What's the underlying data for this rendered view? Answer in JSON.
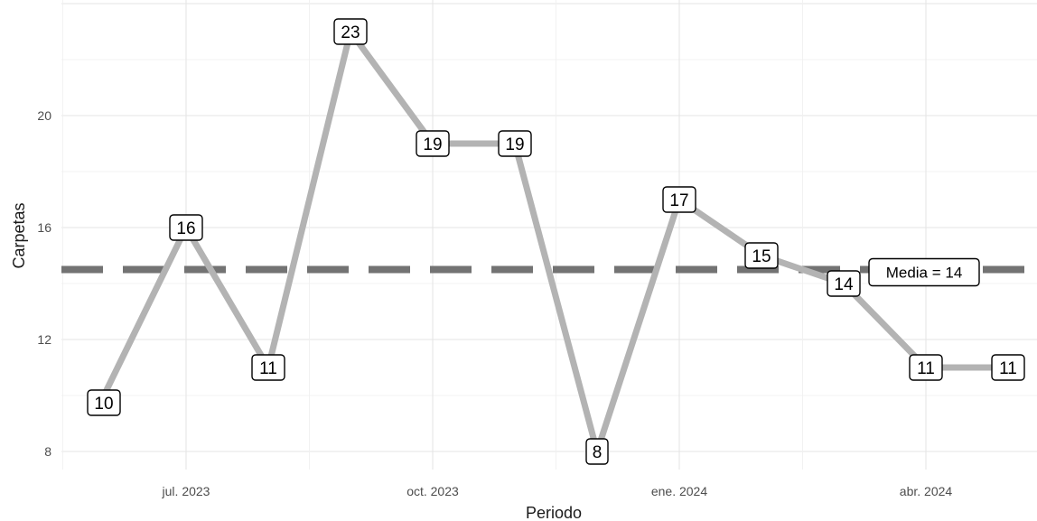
{
  "chart_data": {
    "type": "line",
    "xlabel": "Periodo",
    "ylabel": "Carpetas",
    "x": [
      "2023-06",
      "2023-07",
      "2023-08",
      "2023-09",
      "2023-10",
      "2023-11",
      "2023-12",
      "2024-01",
      "2024-02",
      "2024-03",
      "2024-04",
      "2024-05"
    ],
    "values": [
      10,
      16,
      11,
      23,
      19,
      19,
      8,
      17,
      15,
      14,
      11,
      11
    ],
    "data_labels": [
      "10",
      "16",
      "11",
      "23",
      "19",
      "19",
      "8",
      "17",
      "15",
      "14",
      "11",
      "11"
    ],
    "x_ticks": [
      "jul. 2023",
      "oct. 2023",
      "ene. 2024",
      "abr. 2024"
    ],
    "y_ticks": [
      "8",
      "12",
      "16",
      "20"
    ],
    "ylim": [
      7.5,
      24
    ],
    "mean_line": {
      "value": 14.5,
      "label": "Media = 14"
    },
    "grid": true,
    "legend": "none",
    "colors": {
      "line": "#b3b3b3",
      "mean": "#737373",
      "grid": "#e5e5e5"
    }
  }
}
